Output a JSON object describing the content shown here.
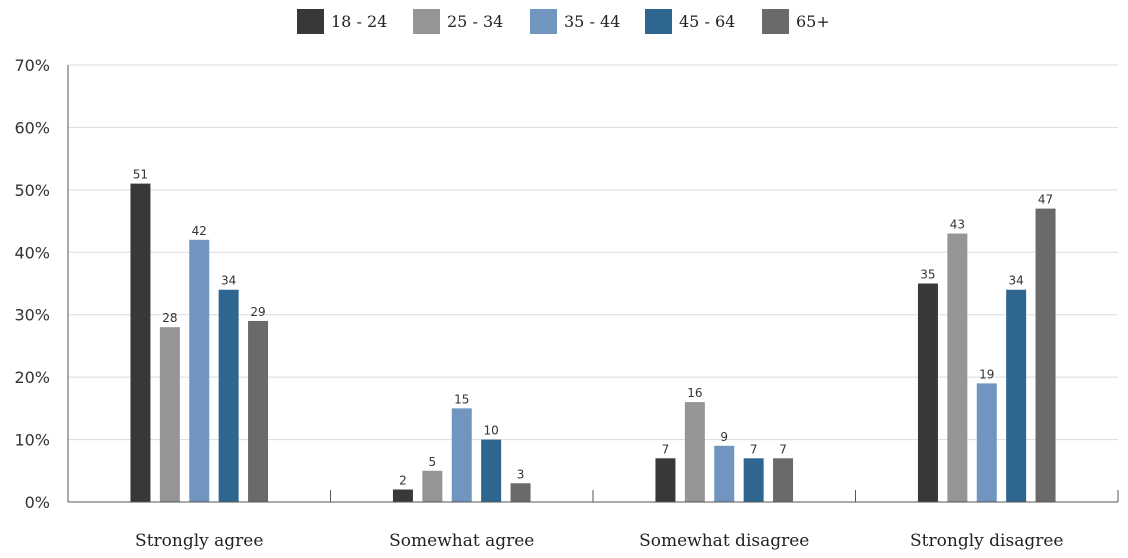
{
  "chart_data": {
    "type": "bar",
    "categories": [
      "Strongly agree",
      "Somewhat agree",
      "Somewhat disagree",
      "Strongly disagree"
    ],
    "series": [
      {
        "name": "18 - 24",
        "color": "#383838",
        "values": [
          51,
          2,
          7,
          35
        ]
      },
      {
        "name": "25 - 34",
        "color": "#959497",
        "values": [
          28,
          5,
          16,
          43
        ]
      },
      {
        "name": "35 - 44",
        "color": "#7096c0",
        "values": [
          42,
          15,
          9,
          19
        ]
      },
      {
        "name": "45 - 64",
        "color": "#2e6690",
        "values": [
          34,
          10,
          7,
          34
        ]
      },
      {
        "name": "65+",
        "color": "#6a6a6a",
        "values": [
          29,
          3,
          7,
          47
        ]
      }
    ],
    "ylim": [
      0,
      70
    ],
    "yticks": [
      "0%",
      "10%",
      "20%",
      "30%",
      "40%",
      "50%",
      "60%",
      "70%"
    ],
    "xlabel": "",
    "ylabel": "",
    "grid": true,
    "legend": "top-center",
    "data_labels": true
  }
}
